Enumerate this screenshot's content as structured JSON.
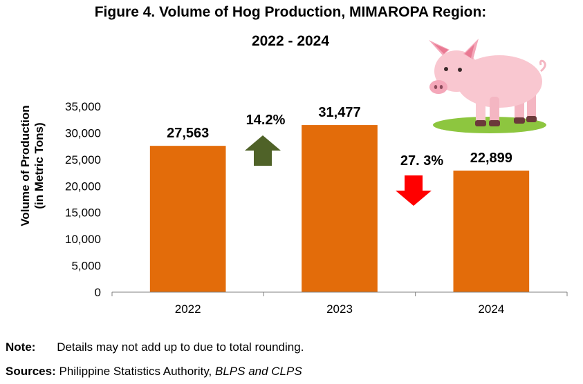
{
  "title_line1": "Figure 4. Volume of Hog Production, MIMAROPA Region:",
  "title_line2": "2022 - 2024",
  "chart_data": {
    "type": "bar",
    "categories": [
      "2022",
      "2023",
      "2024"
    ],
    "values": [
      27563,
      31477,
      22899
    ],
    "data_labels": [
      "27,563",
      "31,477",
      "22,899"
    ],
    "ylabel_line1": "Volume of Production",
    "ylabel_line2": "(in Metric Tons)",
    "ylim": [
      0,
      35000
    ],
    "yticks": [
      0,
      5000,
      10000,
      15000,
      20000,
      25000,
      30000,
      35000
    ],
    "ytick_labels": [
      "0",
      "5,000",
      "10,000",
      "15,000",
      "20,000",
      "25,000",
      "30,000",
      "35,000"
    ],
    "grid": false,
    "bar_color": "#E36C0A",
    "annotations": [
      {
        "text": "14.2%",
        "direction": "up",
        "color": "#4F6228"
      },
      {
        "text": "27. 3%",
        "direction": "down",
        "color": "#FF0000"
      }
    ]
  },
  "note": {
    "label": "Note:",
    "text": "Details may not add up to due to total rounding."
  },
  "sources": {
    "label": "Sources:",
    "text": "Philippine Statistics Authority, ",
    "italic_text": "BLPS and CLPS"
  },
  "decorations": {
    "pig_icon": "pig-icon"
  }
}
